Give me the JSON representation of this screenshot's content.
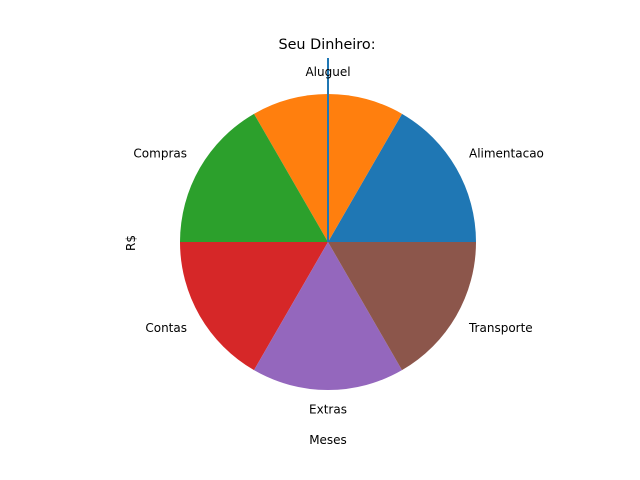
{
  "chart_data": {
    "type": "pie",
    "title": "Seu Dinheiro:",
    "xlabel": "Meses",
    "ylabel": "R$",
    "grid": false,
    "legend": "none",
    "start_angle_deg": 0,
    "direction": "counterclockwise",
    "categories": [
      "Alimentacao",
      "Aluguel",
      "Compras",
      "Contas",
      "Extras",
      "Transporte"
    ],
    "values": [
      1,
      1,
      1,
      1,
      1,
      1
    ],
    "colors": [
      "#1f77b4",
      "#ff7f0e",
      "#2ca02c",
      "#d62728",
      "#9467bd",
      "#8c564b"
    ],
    "overlay_line": {
      "type": "line",
      "color": "#1f77b4"
    }
  }
}
